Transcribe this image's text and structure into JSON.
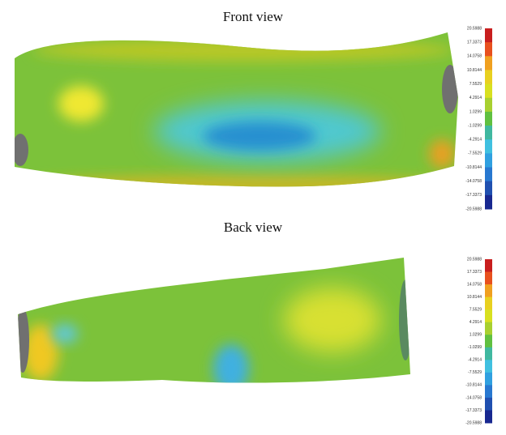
{
  "panels": [
    {
      "title": "Front view",
      "scale": [
        "20.5988",
        "17.3373",
        "14.0758",
        "10.8144",
        "7.5529",
        "4.2914",
        "1.0299",
        "-1.0299",
        "-4.2914",
        "-7.5529",
        "-10.8144",
        "-14.0758",
        "-17.3373",
        "-20.5988"
      ]
    },
    {
      "title": "Back view",
      "scale": [
        "20.5988",
        "17.3373",
        "14.0758",
        "10.8144",
        "7.5529",
        "4.2914",
        "1.0299",
        "-1.0299",
        "-4.2914",
        "-7.5529",
        "-10.8144",
        "-14.0758",
        "-17.3373",
        "-20.5988"
      ]
    }
  ]
}
